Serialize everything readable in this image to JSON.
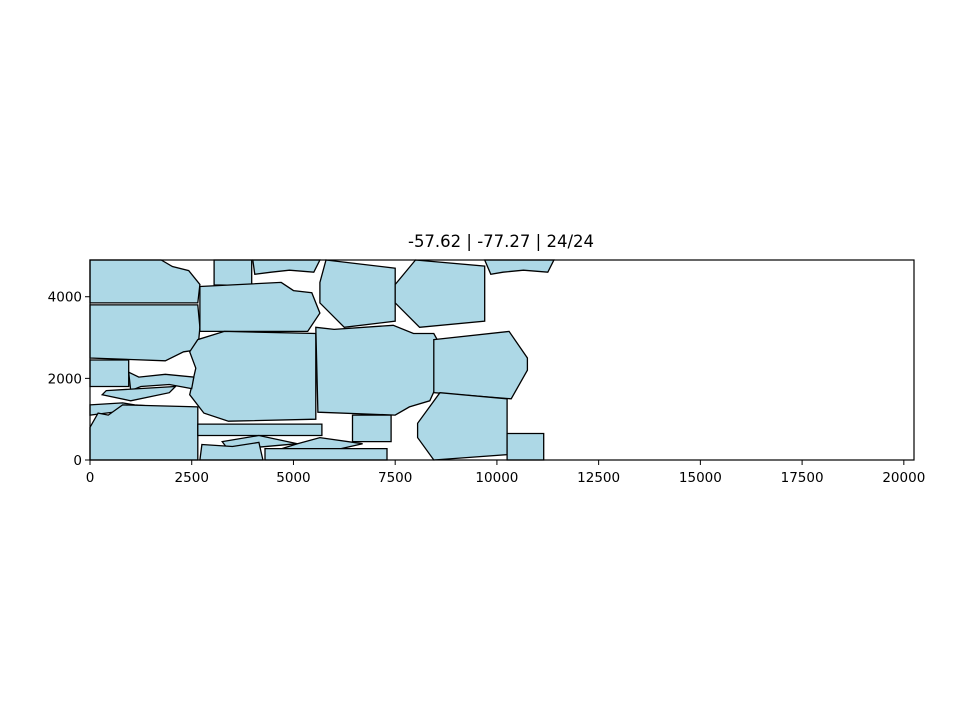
{
  "chart_data": {
    "type": "polygon-packing",
    "title": "-57.62 | -77.27 | 24/24",
    "xlabel": "",
    "ylabel": "",
    "xlim": [
      0,
      20250
    ],
    "ylim": [
      0,
      4900
    ],
    "xticks": [
      0,
      2500,
      5000,
      7500,
      10000,
      12500,
      15000,
      17500,
      20000
    ],
    "xtick_labels": [
      "0",
      "2500",
      "5000",
      "7500",
      "10000",
      "12500",
      "15000",
      "17500",
      "20000"
    ],
    "yticks": [
      0,
      2000,
      4000
    ],
    "ytick_labels": [
      "0",
      "2000",
      "4000"
    ],
    "fill_color": "#add8e6",
    "edge_color": "#000000",
    "grid": false,
    "polygons": [
      [
        [
          0,
          4900
        ],
        [
          1750,
          4900
        ],
        [
          2025,
          4740
        ],
        [
          2425,
          4640
        ],
        [
          2700,
          4300
        ],
        [
          2650,
          3850
        ],
        [
          0,
          3850
        ]
      ],
      [
        [
          3050,
          4900
        ],
        [
          3975,
          4900
        ],
        [
          3975,
          4270
        ],
        [
          3050,
          4290
        ]
      ],
      [
        [
          4000,
          4900
        ],
        [
          5650,
          4900
        ],
        [
          5500,
          4600
        ],
        [
          4900,
          4650
        ],
        [
          4450,
          4600
        ],
        [
          4050,
          4550
        ]
      ],
      [
        [
          0,
          3800
        ],
        [
          2650,
          3800
        ],
        [
          2700,
          3250
        ],
        [
          2650,
          2700
        ],
        [
          2300,
          2650
        ],
        [
          1850,
          2430
        ],
        [
          0,
          2500
        ]
      ],
      [
        [
          2700,
          4250
        ],
        [
          4700,
          4350
        ],
        [
          5000,
          4150
        ],
        [
          5450,
          4100
        ],
        [
          5650,
          3600
        ],
        [
          5350,
          3150
        ],
        [
          2700,
          3150
        ]
      ],
      [
        [
          5800,
          4900
        ],
        [
          7500,
          4700
        ],
        [
          7500,
          3400
        ],
        [
          6250,
          3250
        ],
        [
          5650,
          3850
        ],
        [
          5650,
          4350
        ]
      ],
      [
        [
          8000,
          4900
        ],
        [
          9700,
          4750
        ],
        [
          9700,
          3400
        ],
        [
          8100,
          3250
        ],
        [
          7500,
          3850
        ],
        [
          7500,
          4300
        ]
      ],
      [
        [
          9700,
          4900
        ],
        [
          11400,
          4900
        ],
        [
          11250,
          4600
        ],
        [
          10650,
          4650
        ],
        [
          10150,
          4600
        ],
        [
          9850,
          4550
        ]
      ],
      [
        [
          3300,
          3150
        ],
        [
          5550,
          3100
        ],
        [
          5550,
          1000
        ],
        [
          3400,
          950
        ],
        [
          2800,
          1150
        ],
        [
          2450,
          1600
        ],
        [
          2600,
          2250
        ],
        [
          2450,
          2650
        ],
        [
          2650,
          2950
        ]
      ],
      [
        [
          5550,
          3250
        ],
        [
          6000,
          3200
        ],
        [
          7450,
          3300
        ],
        [
          7950,
          3100
        ],
        [
          8450,
          3100
        ],
        [
          8700,
          2650
        ],
        [
          8550,
          2450
        ],
        [
          8600,
          2000
        ],
        [
          8350,
          1450
        ],
        [
          7850,
          1300
        ],
        [
          7500,
          1100
        ],
        [
          5600,
          1170
        ]
      ],
      [
        [
          8450,
          2950
        ],
        [
          10300,
          3150
        ],
        [
          10750,
          2500
        ],
        [
          10750,
          2200
        ],
        [
          10350,
          1500
        ],
        [
          8450,
          1650
        ]
      ],
      [
        [
          0,
          2450
        ],
        [
          950,
          2450
        ],
        [
          950,
          1800
        ],
        [
          0,
          1800
        ]
      ],
      [
        [
          950,
          2150
        ],
        [
          1200,
          2030
        ],
        [
          1850,
          2100
        ],
        [
          2550,
          2030
        ],
        [
          2500,
          1750
        ],
        [
          1950,
          1850
        ],
        [
          1250,
          1800
        ],
        [
          1000,
          1700
        ]
      ],
      [
        [
          400,
          1700
        ],
        [
          2100,
          1800
        ],
        [
          1950,
          1650
        ],
        [
          1000,
          1450
        ],
        [
          300,
          1600
        ]
      ],
      [
        [
          0,
          1350
        ],
        [
          800,
          1400
        ],
        [
          1100,
          1350
        ],
        [
          1800,
          1300
        ],
        [
          1600,
          1150
        ],
        [
          800,
          1200
        ],
        [
          0,
          1100
        ]
      ],
      [
        [
          0,
          800
        ],
        [
          200,
          1150
        ],
        [
          450,
          1100
        ],
        [
          800,
          1350
        ],
        [
          2650,
          1300
        ],
        [
          2650,
          0
        ],
        [
          0,
          0
        ]
      ],
      [
        [
          2650,
          880
        ],
        [
          5700,
          880
        ],
        [
          5700,
          600
        ],
        [
          2650,
          600
        ]
      ],
      [
        [
          6450,
          1100
        ],
        [
          7400,
          1100
        ],
        [
          7400,
          450
        ],
        [
          6450,
          450
        ]
      ],
      [
        [
          8600,
          1650
        ],
        [
          10250,
          1500
        ],
        [
          10250,
          130
        ],
        [
          8450,
          0
        ],
        [
          8050,
          550
        ],
        [
          8050,
          900
        ]
      ],
      [
        [
          10250,
          650
        ],
        [
          11150,
          650
        ],
        [
          11150,
          0
        ],
        [
          10250,
          0
        ]
      ],
      [
        [
          3250,
          450
        ],
        [
          4150,
          600
        ],
        [
          5100,
          400
        ],
        [
          3400,
          250
        ]
      ],
      [
        [
          2750,
          380
        ],
        [
          3500,
          330
        ],
        [
          4150,
          430
        ],
        [
          4250,
          0
        ],
        [
          2700,
          0
        ]
      ],
      [
        [
          4300,
          150
        ],
        [
          5100,
          400
        ],
        [
          5650,
          550
        ],
        [
          6700,
          400
        ],
        [
          5600,
          150
        ]
      ],
      [
        [
          4300,
          280
        ],
        [
          7300,
          280
        ],
        [
          7300,
          0
        ],
        [
          4300,
          0
        ]
      ]
    ]
  }
}
